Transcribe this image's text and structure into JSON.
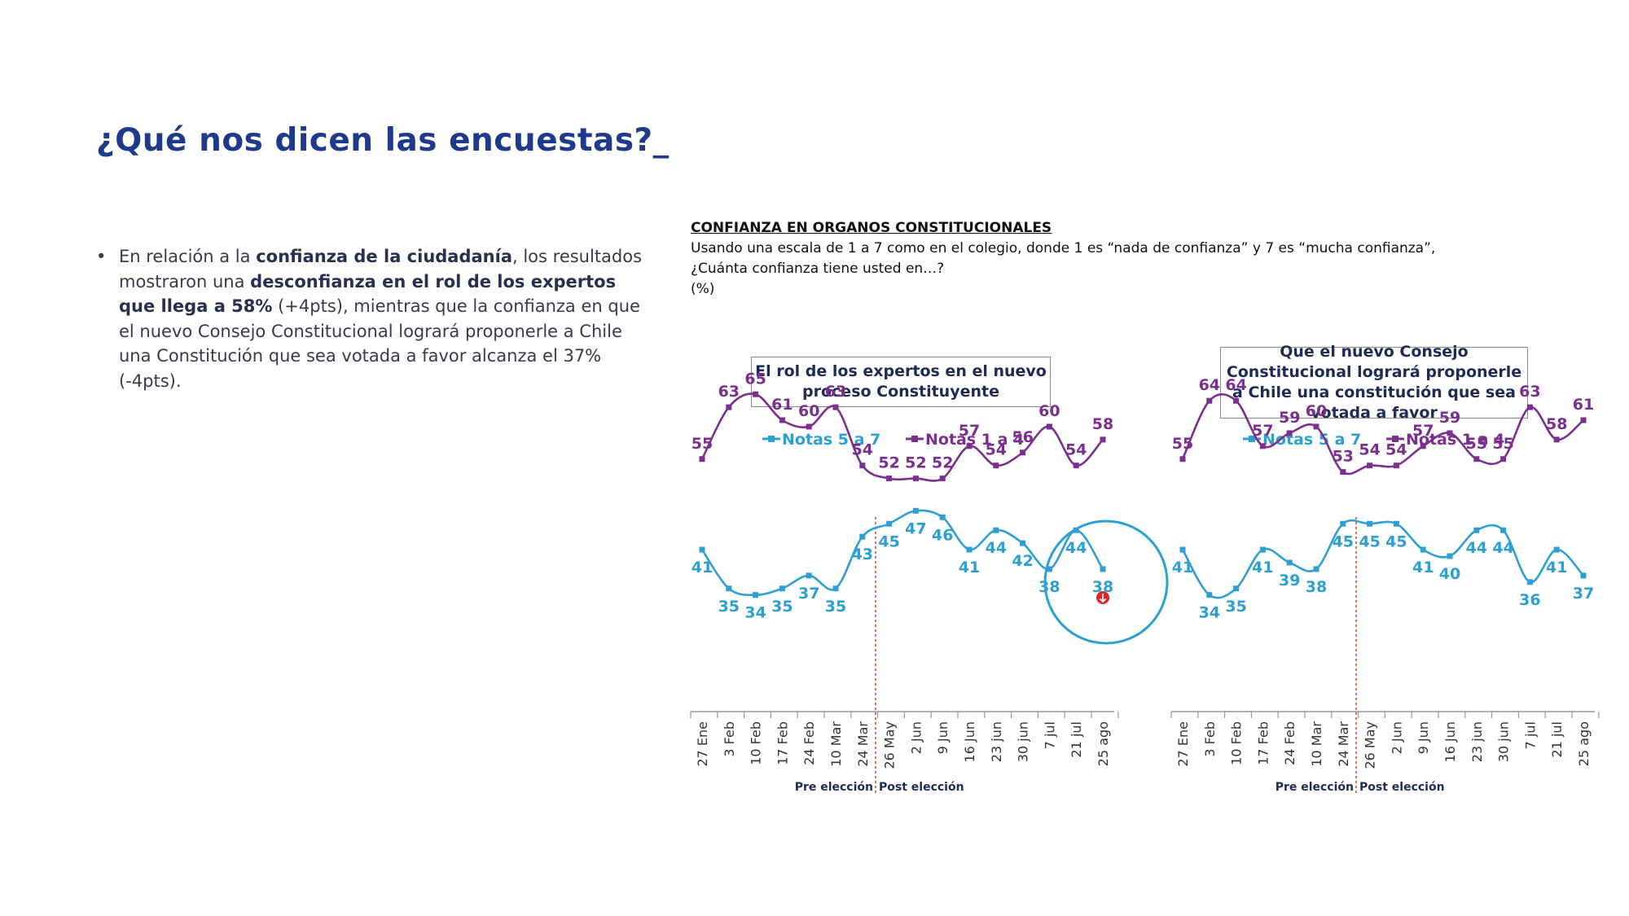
{
  "page": {
    "title": "¿Qué nos dicen las encuestas?_",
    "bullet": {
      "t1": "En relación a la ",
      "b1": "confianza de la ciudadanía",
      "t2": ", los resultados mostraron una ",
      "b2": "desconfianza en el rol de los expertos que llega a 58%",
      "t3": " (+4pts), mientras que la confianza en que el nuevo Consejo Constitucional logrará proponerle a Chile una Constitución que sea votada a favor alcanza el 37% (-4pts)."
    }
  },
  "question": {
    "heading": "CONFIANZA EN ORGANOS CONSTITUCIONALES",
    "line1": "Usando una escala de 1 a 7 como en el colegio, donde 1 es “nada de confianza” y 7 es “mucha confianza”,",
    "line2": "¿Cuánta confianza tiene usted en…?",
    "unit": "(%)"
  },
  "colors": {
    "title": "#1f3a8a",
    "series_5a7": "#2e9fd3",
    "series_1a4": "#7b2f8e",
    "divider": "#c0392b",
    "highlight": "#2e9fd3"
  },
  "chart_data": [
    {
      "type": "line",
      "title": "El rol de los expertos en el nuevo proceso Constituyente",
      "categories": [
        "27 Ene",
        "3 Feb",
        "10 Feb",
        "17 Feb",
        "24 Feb",
        "10 Mar",
        "24 Mar",
        "26 May",
        "2 Jun",
        "9 Jun",
        "16 Jun",
        "23 jun",
        "30 jun",
        "7 jul",
        "21 jul",
        "25 ago"
      ],
      "series": [
        {
          "name": "Notas 5 a 7",
          "values": [
            41,
            35,
            34,
            35,
            37,
            35,
            43,
            45,
            47,
            46,
            41,
            44,
            42,
            38,
            44,
            38
          ]
        },
        {
          "name": "Notas 1 a 4",
          "values": [
            55,
            63,
            65,
            61,
            60,
            63,
            54,
            52,
            52,
            52,
            57,
            54,
            56,
            60,
            54,
            58
          ]
        }
      ],
      "period_labels": [
        "Pre elección",
        "Post elección"
      ],
      "divider_after_category": "24 Mar",
      "highlight_last_points": true,
      "legend_position": "top",
      "grid": false
    },
    {
      "type": "line",
      "title": "Que el nuevo Consejo Constitucional logrará proponerle a Chile una constitución que sea votada a favor",
      "categories": [
        "27 Ene",
        "3 Feb",
        "10 Feb",
        "17 Feb",
        "24 Feb",
        "10 Mar",
        "24 Mar",
        "26 May",
        "2 Jun",
        "9 Jun",
        "16 Jun",
        "23 jun",
        "30 jun",
        "7 jul",
        "21 jul",
        "25 ago"
      ],
      "series": [
        {
          "name": "Notas 5 a 7",
          "values": [
            41,
            34,
            35,
            41,
            39,
            38,
            45,
            45,
            45,
            41,
            40,
            44,
            44,
            36,
            41,
            37
          ]
        },
        {
          "name": "Notas 1 a 4",
          "values": [
            55,
            64,
            64,
            57,
            59,
            60,
            53,
            54,
            54,
            57,
            59,
            55,
            55,
            63,
            58,
            61
          ]
        }
      ],
      "period_labels": [
        "Pre elección",
        "Post elección"
      ],
      "divider_after_category": "24 Mar",
      "legend_position": "top",
      "grid": false
    }
  ]
}
